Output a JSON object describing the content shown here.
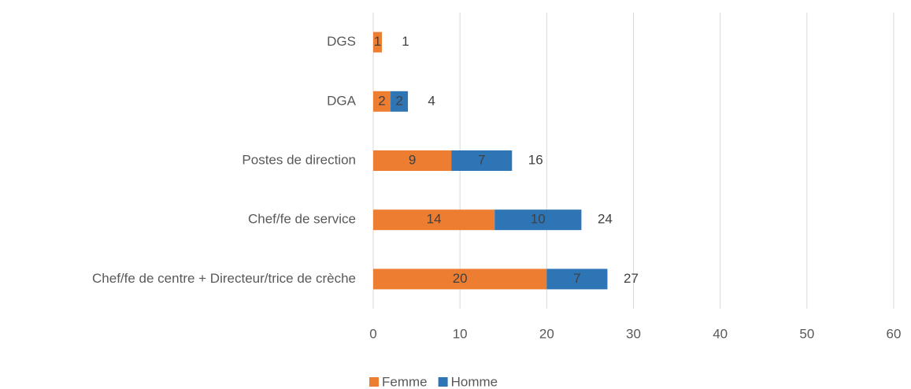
{
  "chart_data": {
    "type": "stacked_bar_horizontal",
    "categories": [
      "DGS",
      "DGA",
      "Postes de direction",
      "Chef/fe de service",
      "Chef/fe de centre + Directeur/trice de crèche"
    ],
    "series": [
      {
        "name": "Femme",
        "color": "#ed7d31",
        "values": [
          1,
          2,
          9,
          14,
          20
        ]
      },
      {
        "name": "Homme",
        "color": "#2e75b6",
        "values": [
          null,
          2,
          7,
          10,
          7
        ]
      }
    ],
    "totals": [
      1,
      4,
      16,
      24,
      27
    ],
    "xlim": [
      0,
      60
    ],
    "xticks": [
      0,
      10,
      20,
      30,
      40,
      50,
      60
    ],
    "grid": true,
    "legend": "bottom"
  }
}
